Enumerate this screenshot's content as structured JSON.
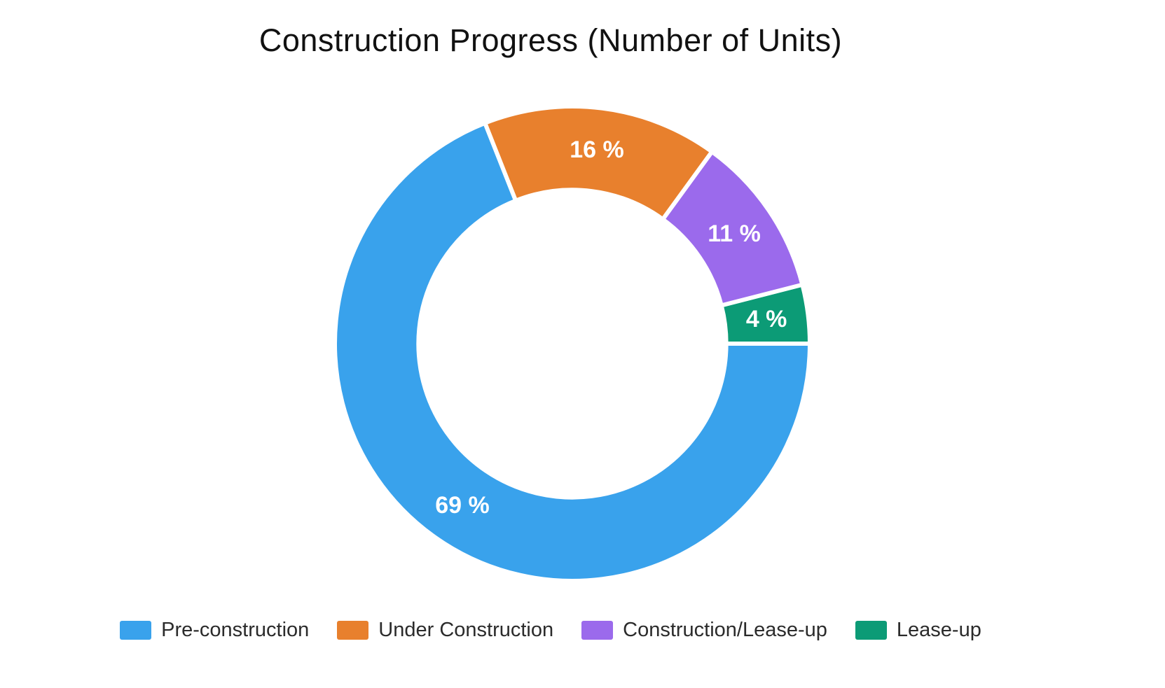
{
  "chart_data": {
    "type": "pie",
    "subtype": "donut",
    "title": "Construction Progress (Number of Units)",
    "hole_ratio": 0.648,
    "grid": false,
    "legend_position": "bottom",
    "labels_position": "inside",
    "label_text_color": "#ffffff",
    "slice_gap_color": "#ffffff",
    "title_color": "#111111",
    "legend_text_color": "#2b2b2b",
    "background_color": "#ffffff",
    "segments": [
      {
        "label": "Pre-construction",
        "value_pct": 69,
        "label_text": "69 %",
        "color": "#39A2EC"
      },
      {
        "label": "Under Construction",
        "value_pct": 16,
        "label_text": "16 %",
        "color": "#E8802D"
      },
      {
        "label": "Construction/Lease-up",
        "value_pct": 11,
        "label_text": "11 %",
        "color": "#9B6AEC"
      },
      {
        "label": "Lease-up",
        "value_pct": 4,
        "label_text": "4 %",
        "color": "#0C9B76"
      }
    ]
  }
}
